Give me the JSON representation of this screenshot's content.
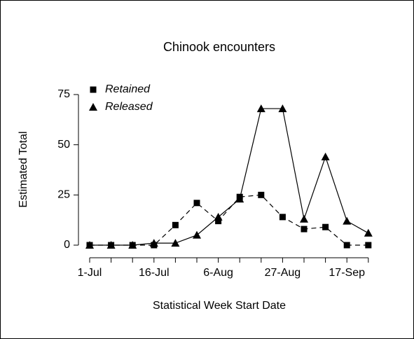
{
  "chart_data": {
    "type": "line",
    "title": "Chinook encounters",
    "xlabel": "Statistical Week Start Date",
    "ylabel": "Estimated Total",
    "categories": [
      "1-Jul",
      null,
      null,
      "16-Jul",
      null,
      null,
      "6-Aug",
      null,
      null,
      "27-Aug",
      null,
      null,
      "17-Sep",
      null
    ],
    "series": [
      {
        "name": "Retained",
        "color": "#000000",
        "linestyle": "dashed",
        "marker": "square",
        "values": [
          0,
          0,
          0,
          0,
          10,
          21,
          12,
          24,
          25,
          14,
          8,
          9,
          0,
          0
        ]
      },
      {
        "name": "Released",
        "color": "#000000",
        "linestyle": "solid",
        "marker": "triangle",
        "values": [
          0,
          0,
          0,
          1,
          1,
          5,
          14,
          23,
          68,
          68,
          13,
          44,
          12,
          6
        ]
      }
    ],
    "ylim": [
      0,
      75
    ],
    "yticks": [
      0,
      25,
      50,
      75
    ],
    "grid": false,
    "legend": "upper left"
  }
}
